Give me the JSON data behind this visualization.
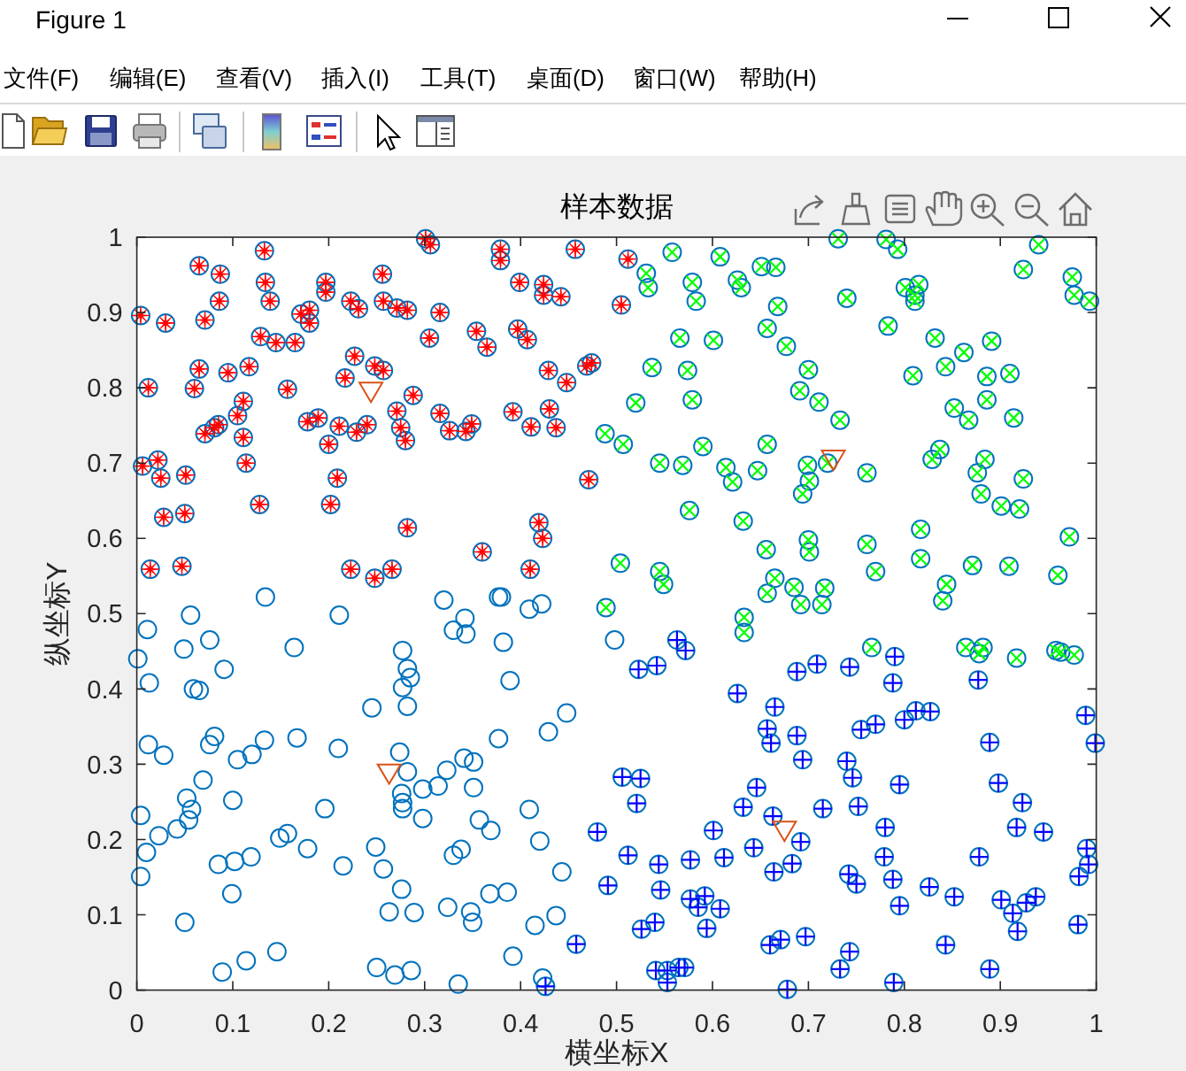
{
  "chart_data": {
    "type": "scatter",
    "title": "样本数据",
    "xlabel": "横坐标X",
    "ylabel": "纵坐标Y",
    "annotations": [
      "Figure 1",
      "文件(F)",
      "编辑(E)",
      "查看(V)",
      "插入(I)",
      "工具(T)",
      "桌面(D)",
      "窗口(W)",
      "帮助(H)"
    ],
    "xlim": [
      0,
      1
    ],
    "ylim": [
      0,
      1
    ],
    "xticks": [
      0,
      0.1,
      0.2,
      0.3,
      0.4,
      0.5,
      0.6,
      0.7,
      0.8,
      0.9,
      1
    ],
    "yticks": [
      0,
      0.1,
      0.2,
      0.3,
      0.4,
      0.5,
      0.6,
      0.7,
      0.8,
      0.9,
      1
    ],
    "series": [
      {
        "color": "#0072bd",
        "marker": "circle",
        "x": [
          0.004,
          0.03,
          0.012,
          0.065,
          0.087,
          0.086,
          0.071,
          0.133,
          0.134,
          0.139,
          0.129,
          0.145,
          0.165,
          0.065,
          0.06,
          0.095,
          0.117,
          0.157,
          0.171,
          0.18,
          0.18,
          0.197,
          0.197,
          0.223,
          0.231,
          0.256,
          0.257,
          0.271,
          0.282,
          0.316,
          0.301,
          0.306,
          0.305,
          0.227,
          0.217,
          0.248,
          0.257,
          0.288,
          0.071,
          0.081,
          0.085,
          0.105,
          0.111,
          0.111,
          0.114,
          0.006,
          0.022,
          0.025,
          0.051,
          0.028,
          0.05,
          0.014,
          0.047,
          0.128,
          0.178,
          0.189,
          0.2,
          0.211,
          0.209,
          0.202,
          0.229,
          0.24,
          0.271,
          0.275,
          0.28,
          0.316,
          0.326,
          0.343,
          0.349,
          0.282,
          0.223,
          0.248,
          0.266,
          0.36,
          0.354,
          0.365,
          0.379,
          0.379,
          0.399,
          0.397,
          0.407,
          0.424,
          0.424,
          0.442,
          0.457,
          0.429,
          0.448,
          0.469,
          0.474,
          0.392,
          0.411,
          0.43,
          0.437,
          0.471,
          0.419,
          0.423,
          0.41,
          0.512,
          0.505,
          0.488,
          0.507,
          0.52,
          0.504,
          0.489,
          0.558,
          0.608,
          0.531,
          0.533,
          0.579,
          0.583,
          0.626,
          0.63,
          0.651,
          0.666,
          0.668,
          0.657,
          0.677,
          0.731,
          0.781,
          0.793,
          0.74,
          0.783,
          0.801,
          0.815,
          0.811,
          0.811,
          0.94,
          0.924,
          0.975,
          0.977,
          0.993,
          0.566,
          0.601,
          0.537,
          0.574,
          0.579,
          0.7,
          0.691,
          0.711,
          0.733,
          0.832,
          0.862,
          0.891,
          0.809,
          0.843,
          0.886,
          0.91,
          0.852,
          0.867,
          0.886,
          0.914,
          0.545,
          0.569,
          0.59,
          0.657,
          0.614,
          0.621,
          0.647,
          0.699,
          0.701,
          0.694,
          0.72,
          0.761,
          0.829,
          0.837,
          0.876,
          0.884,
          0.88,
          0.901,
          0.92,
          0.924,
          0.576,
          0.632,
          0.817,
          0.972,
          0.545,
          0.549,
          0.656,
          0.7,
          0.701,
          0.761,
          0.77,
          0.817,
          0.871,
          0.909,
          0.96,
          0.844,
          0.84,
          0.665,
          0.657,
          0.685,
          0.717,
          0.692,
          0.714,
          0.633,
          0.633,
          0.766,
          0.864,
          0.878,
          0.882,
          0.917,
          0.958,
          0.963,
          0.977,
          0.563,
          0.572,
          0.523,
          0.542,
          0.626,
          0.665,
          0.657,
          0.661,
          0.688,
          0.709,
          0.743,
          0.79,
          0.788,
          0.877,
          0.688,
          0.694,
          0.755,
          0.77,
          0.8,
          0.812,
          0.827,
          0.889,
          0.989,
          0.999,
          0.506,
          0.525,
          0.521,
          0.646,
          0.632,
          0.663,
          0.715,
          0.752,
          0.74,
          0.746,
          0.795,
          0.898,
          0.923,
          0.917,
          0.945,
          0.78,
          0.601,
          0.643,
          0.692,
          0.48,
          0.512,
          0.544,
          0.577,
          0.612,
          0.664,
          0.683,
          0.779,
          0.878,
          0.99,
          0.992,
          0.982,
          0.491,
          0.546,
          0.577,
          0.585,
          0.592,
          0.608,
          0.742,
          0.75,
          0.788,
          0.795,
          0.826,
          0.852,
          0.901,
          0.913,
          0.918,
          0.927,
          0.937,
          0.981,
          0.526,
          0.54,
          0.594,
          0.66,
          0.671,
          0.697,
          0.743,
          0.733,
          0.843,
          0.889,
          0.541,
          0.553,
          0.553,
          0.565,
          0.571,
          0.678,
          0.789,
          0.458,
          0.426,
          0.001,
          0.011,
          0.013,
          0.056,
          0.049,
          0.076,
          0.091,
          0.059,
          0.065,
          0.134,
          0.164,
          0.211,
          0.012,
          0.028,
          0.076,
          0.081,
          0.069,
          0.105,
          0.12,
          0.133,
          0.167,
          0.21,
          0.245,
          0.004,
          0.01,
          0.004,
          0.023,
          0.042,
          0.052,
          0.057,
          0.054,
          0.1,
          0.085,
          0.102,
          0.119,
          0.099,
          0.05,
          0.089,
          0.114,
          0.146,
          0.149,
          0.157,
          0.178,
          0.196,
          0.215,
          0.249,
          0.257,
          0.276,
          0.263,
          0.289,
          0.25,
          0.269,
          0.286,
          0.274,
          0.282,
          0.276,
          0.277,
          0.277,
          0.298,
          0.298,
          0.314,
          0.323,
          0.341,
          0.351,
          0.351,
          0.357,
          0.369,
          0.33,
          0.338,
          0.324,
          0.348,
          0.35,
          0.368,
          0.386,
          0.392,
          0.335,
          0.409,
          0.42,
          0.443,
          0.437,
          0.415,
          0.423,
          0.429,
          0.448,
          0.377,
          0.389,
          0.382,
          0.277,
          0.282,
          0.285,
          0.277,
          0.282,
          0.33,
          0.342,
          0.343,
          0.32,
          0.377,
          0.38,
          0.409,
          0.422,
          0.498
        ],
        "values": [
          0.896,
          0.886,
          0.8,
          0.962,
          0.951,
          0.915,
          0.89,
          0.982,
          0.94,
          0.915,
          0.868,
          0.86,
          0.86,
          0.825,
          0.799,
          0.82,
          0.828,
          0.798,
          0.898,
          0.903,
          0.886,
          0.94,
          0.927,
          0.915,
          0.905,
          0.951,
          0.915,
          0.906,
          0.903,
          0.9,
          0.998,
          0.99,
          0.866,
          0.842,
          0.813,
          0.829,
          0.823,
          0.79,
          0.739,
          0.747,
          0.751,
          0.763,
          0.782,
          0.734,
          0.7,
          0.696,
          0.704,
          0.68,
          0.684,
          0.628,
          0.633,
          0.559,
          0.563,
          0.645,
          0.755,
          0.76,
          0.725,
          0.749,
          0.68,
          0.645,
          0.741,
          0.751,
          0.769,
          0.747,
          0.73,
          0.766,
          0.743,
          0.742,
          0.752,
          0.614,
          0.559,
          0.547,
          0.559,
          0.582,
          0.875,
          0.854,
          0.984,
          0.969,
          0.94,
          0.878,
          0.864,
          0.937,
          0.923,
          0.921,
          0.984,
          0.823,
          0.807,
          0.829,
          0.833,
          0.768,
          0.748,
          0.772,
          0.747,
          0.678,
          0.621,
          0.6,
          0.559,
          0.971,
          0.91,
          0.739,
          0.725,
          0.78,
          0.567,
          0.508,
          0.98,
          0.974,
          0.952,
          0.933,
          0.94,
          0.915,
          0.943,
          0.933,
          0.961,
          0.96,
          0.908,
          0.879,
          0.855,
          0.998,
          0.997,
          0.984,
          0.919,
          0.882,
          0.933,
          0.937,
          0.923,
          0.915,
          0.99,
          0.957,
          0.947,
          0.923,
          0.915,
          0.866,
          0.863,
          0.827,
          0.823,
          0.784,
          0.824,
          0.796,
          0.781,
          0.757,
          0.866,
          0.847,
          0.862,
          0.816,
          0.828,
          0.815,
          0.819,
          0.773,
          0.757,
          0.784,
          0.76,
          0.7,
          0.697,
          0.722,
          0.725,
          0.694,
          0.675,
          0.69,
          0.697,
          0.676,
          0.659,
          0.7,
          0.687,
          0.705,
          0.718,
          0.687,
          0.705,
          0.659,
          0.643,
          0.639,
          0.679,
          0.637,
          0.623,
          0.612,
          0.602,
          0.556,
          0.539,
          0.585,
          0.598,
          0.582,
          0.592,
          0.556,
          0.573,
          0.564,
          0.563,
          0.551,
          0.539,
          0.517,
          0.547,
          0.527,
          0.535,
          0.534,
          0.512,
          0.512,
          0.495,
          0.475,
          0.455,
          0.455,
          0.447,
          0.455,
          0.441,
          0.451,
          0.449,
          0.445,
          0.465,
          0.451,
          0.426,
          0.431,
          0.394,
          0.376,
          0.347,
          0.328,
          0.423,
          0.433,
          0.429,
          0.443,
          0.408,
          0.412,
          0.338,
          0.306,
          0.346,
          0.353,
          0.359,
          0.371,
          0.37,
          0.329,
          0.365,
          0.328,
          0.283,
          0.281,
          0.248,
          0.269,
          0.243,
          0.231,
          0.241,
          0.244,
          0.304,
          0.282,
          0.273,
          0.275,
          0.249,
          0.216,
          0.21,
          0.216,
          0.212,
          0.189,
          0.197,
          0.21,
          0.179,
          0.167,
          0.173,
          0.176,
          0.157,
          0.168,
          0.177,
          0.177,
          0.188,
          0.167,
          0.151,
          0.139,
          0.133,
          0.121,
          0.11,
          0.125,
          0.108,
          0.154,
          0.141,
          0.147,
          0.112,
          0.137,
          0.124,
          0.12,
          0.102,
          0.078,
          0.116,
          0.124,
          0.087,
          0.081,
          0.09,
          0.082,
          0.06,
          0.067,
          0.071,
          0.051,
          0.028,
          0.06,
          0.028,
          0.026,
          0.026,
          0.01,
          0.03,
          0.03,
          0.001,
          0.01,
          0.061,
          0.005,
          0.44,
          0.479,
          0.408,
          0.498,
          0.453,
          0.465,
          0.426,
          0.4,
          0.398,
          0.522,
          0.455,
          0.498,
          0.326,
          0.312,
          0.326,
          0.337,
          0.279,
          0.306,
          0.313,
          0.332,
          0.335,
          0.321,
          0.375,
          0.232,
          0.183,
          0.151,
          0.205,
          0.214,
          0.255,
          0.24,
          0.226,
          0.252,
          0.167,
          0.171,
          0.177,
          0.128,
          0.09,
          0.024,
          0.039,
          0.051,
          0.202,
          0.208,
          0.188,
          0.241,
          0.165,
          0.19,
          0.161,
          0.134,
          0.104,
          0.103,
          0.03,
          0.02,
          0.026,
          0.316,
          0.29,
          0.261,
          0.249,
          0.241,
          0.267,
          0.228,
          0.271,
          0.292,
          0.308,
          0.303,
          0.269,
          0.226,
          0.212,
          0.179,
          0.187,
          0.11,
          0.104,
          0.09,
          0.128,
          0.13,
          0.045,
          0.008,
          0.24,
          0.198,
          0.157,
          0.099,
          0.086,
          0.016,
          0.343,
          0.368,
          0.334,
          0.411,
          0.462,
          0.451,
          0.427,
          0.415,
          0.402,
          0.377,
          0.478,
          0.494,
          0.473,
          0.518,
          0.522,
          0.522,
          0.506,
          0.513,
          0.465
        ]
      },
      {
        "color": "#ff0000",
        "marker": "star",
        "x": [
          0.004,
          0.03,
          0.012,
          0.065,
          0.087,
          0.086,
          0.071,
          0.133,
          0.134,
          0.139,
          0.129,
          0.145,
          0.165,
          0.065,
          0.06,
          0.095,
          0.117,
          0.157,
          0.171,
          0.18,
          0.18,
          0.197,
          0.197,
          0.223,
          0.231,
          0.256,
          0.257,
          0.271,
          0.282,
          0.316,
          0.301,
          0.306,
          0.305,
          0.227,
          0.217,
          0.248,
          0.257,
          0.288,
          0.071,
          0.081,
          0.085,
          0.105,
          0.111,
          0.111,
          0.114,
          0.006,
          0.022,
          0.025,
          0.051,
          0.028,
          0.05,
          0.014,
          0.047,
          0.128,
          0.178,
          0.189,
          0.2,
          0.211,
          0.209,
          0.202,
          0.229,
          0.24,
          0.271,
          0.275,
          0.28,
          0.316,
          0.326,
          0.343,
          0.349,
          0.282,
          0.223,
          0.248,
          0.266,
          0.36,
          0.354,
          0.365,
          0.379,
          0.379,
          0.399,
          0.397,
          0.407,
          0.424,
          0.424,
          0.442,
          0.457,
          0.429,
          0.448,
          0.469,
          0.474,
          0.392,
          0.411,
          0.43,
          0.437,
          0.471,
          0.419,
          0.423,
          0.41,
          0.512,
          0.505
        ],
        "values": [
          0.896,
          0.886,
          0.8,
          0.962,
          0.951,
          0.915,
          0.89,
          0.982,
          0.94,
          0.915,
          0.868,
          0.86,
          0.86,
          0.825,
          0.799,
          0.82,
          0.828,
          0.798,
          0.898,
          0.903,
          0.886,
          0.94,
          0.927,
          0.915,
          0.905,
          0.951,
          0.915,
          0.906,
          0.903,
          0.9,
          0.998,
          0.99,
          0.866,
          0.842,
          0.813,
          0.829,
          0.823,
          0.79,
          0.739,
          0.747,
          0.751,
          0.763,
          0.782,
          0.734,
          0.7,
          0.696,
          0.704,
          0.68,
          0.684,
          0.628,
          0.633,
          0.559,
          0.563,
          0.645,
          0.755,
          0.76,
          0.725,
          0.749,
          0.68,
          0.645,
          0.741,
          0.751,
          0.769,
          0.747,
          0.73,
          0.766,
          0.743,
          0.742,
          0.752,
          0.614,
          0.559,
          0.547,
          0.559,
          0.582,
          0.875,
          0.854,
          0.984,
          0.969,
          0.94,
          0.878,
          0.864,
          0.937,
          0.923,
          0.921,
          0.984,
          0.823,
          0.807,
          0.829,
          0.833,
          0.768,
          0.748,
          0.772,
          0.747,
          0.678,
          0.621,
          0.6,
          0.559,
          0.971,
          0.91
        ]
      },
      {
        "color": "#00ff00",
        "marker": "x",
        "x": [
          0.488,
          0.507,
          0.52,
          0.504,
          0.489,
          0.558,
          0.608,
          0.531,
          0.533,
          0.579,
          0.583,
          0.626,
          0.63,
          0.651,
          0.666,
          0.668,
          0.657,
          0.677,
          0.731,
          0.781,
          0.793,
          0.74,
          0.783,
          0.801,
          0.815,
          0.811,
          0.811,
          0.94,
          0.924,
          0.975,
          0.977,
          0.993,
          0.566,
          0.601,
          0.537,
          0.574,
          0.579,
          0.7,
          0.691,
          0.711,
          0.733,
          0.832,
          0.862,
          0.891,
          0.809,
          0.843,
          0.886,
          0.91,
          0.852,
          0.867,
          0.886,
          0.914,
          0.545,
          0.569,
          0.59,
          0.657,
          0.614,
          0.621,
          0.647,
          0.699,
          0.701,
          0.694,
          0.72,
          0.761,
          0.829,
          0.837,
          0.876,
          0.884,
          0.88,
          0.901,
          0.92,
          0.924,
          0.576,
          0.632,
          0.817,
          0.972,
          0.545,
          0.549,
          0.656,
          0.7,
          0.701,
          0.761,
          0.77,
          0.817,
          0.871,
          0.909,
          0.96,
          0.844,
          0.84,
          0.665,
          0.657,
          0.685,
          0.717,
          0.692,
          0.714,
          0.633,
          0.633,
          0.766,
          0.864,
          0.878,
          0.882,
          0.917,
          0.958,
          0.963,
          0.977
        ],
        "values": [
          0.739,
          0.725,
          0.78,
          0.567,
          0.508,
          0.98,
          0.974,
          0.952,
          0.933,
          0.94,
          0.915,
          0.943,
          0.933,
          0.961,
          0.96,
          0.908,
          0.879,
          0.855,
          0.998,
          0.997,
          0.984,
          0.919,
          0.882,
          0.933,
          0.937,
          0.923,
          0.915,
          0.99,
          0.957,
          0.947,
          0.923,
          0.915,
          0.866,
          0.863,
          0.827,
          0.823,
          0.784,
          0.824,
          0.796,
          0.781,
          0.757,
          0.866,
          0.847,
          0.862,
          0.816,
          0.828,
          0.815,
          0.819,
          0.773,
          0.757,
          0.784,
          0.76,
          0.7,
          0.697,
          0.722,
          0.725,
          0.694,
          0.675,
          0.69,
          0.697,
          0.676,
          0.659,
          0.7,
          0.687,
          0.705,
          0.718,
          0.687,
          0.705,
          0.659,
          0.643,
          0.639,
          0.679,
          0.637,
          0.623,
          0.612,
          0.602,
          0.556,
          0.539,
          0.585,
          0.598,
          0.582,
          0.592,
          0.556,
          0.573,
          0.564,
          0.563,
          0.551,
          0.539,
          0.517,
          0.547,
          0.527,
          0.535,
          0.534,
          0.512,
          0.512,
          0.495,
          0.475,
          0.455,
          0.455,
          0.447,
          0.455,
          0.441,
          0.451,
          0.449,
          0.445
        ]
      },
      {
        "color": "#0000ff",
        "marker": "cross",
        "x": [
          0.563,
          0.572,
          0.523,
          0.542,
          0.626,
          0.665,
          0.657,
          0.661,
          0.688,
          0.709,
          0.743,
          0.79,
          0.788,
          0.877,
          0.688,
          0.694,
          0.755,
          0.77,
          0.8,
          0.812,
          0.827,
          0.889,
          0.989,
          0.999,
          0.506,
          0.525,
          0.521,
          0.646,
          0.632,
          0.663,
          0.715,
          0.752,
          0.74,
          0.746,
          0.795,
          0.898,
          0.923,
          0.917,
          0.945,
          0.78,
          0.601,
          0.643,
          0.692,
          0.48,
          0.512,
          0.544,
          0.577,
          0.612,
          0.664,
          0.683,
          0.779,
          0.878,
          0.99,
          0.992,
          0.982,
          0.491,
          0.546,
          0.577,
          0.585,
          0.592,
          0.608,
          0.742,
          0.75,
          0.788,
          0.795,
          0.826,
          0.852,
          0.901,
          0.913,
          0.918,
          0.927,
          0.937,
          0.981,
          0.526,
          0.54,
          0.594,
          0.66,
          0.671,
          0.697,
          0.743,
          0.733,
          0.843,
          0.889,
          0.541,
          0.553,
          0.553,
          0.565,
          0.571,
          0.678,
          0.789,
          0.458,
          0.426
        ],
        "values": [
          0.465,
          0.451,
          0.426,
          0.431,
          0.394,
          0.376,
          0.347,
          0.328,
          0.423,
          0.433,
          0.429,
          0.443,
          0.408,
          0.412,
          0.338,
          0.306,
          0.346,
          0.353,
          0.359,
          0.371,
          0.37,
          0.329,
          0.365,
          0.328,
          0.283,
          0.281,
          0.248,
          0.269,
          0.243,
          0.231,
          0.241,
          0.244,
          0.304,
          0.282,
          0.273,
          0.275,
          0.249,
          0.216,
          0.21,
          0.216,
          0.212,
          0.189,
          0.197,
          0.21,
          0.179,
          0.167,
          0.173,
          0.176,
          0.157,
          0.168,
          0.177,
          0.177,
          0.188,
          0.167,
          0.151,
          0.139,
          0.133,
          0.121,
          0.11,
          0.125,
          0.108,
          0.154,
          0.141,
          0.147,
          0.112,
          0.137,
          0.124,
          0.12,
          0.102,
          0.078,
          0.116,
          0.124,
          0.087,
          0.081,
          0.09,
          0.082,
          0.06,
          0.067,
          0.071,
          0.051,
          0.028,
          0.06,
          0.028,
          0.026,
          0.026,
          0.01,
          0.03,
          0.03,
          0.001,
          0.01,
          0.061,
          0.005
        ]
      },
      {
        "color": "#d95319",
        "marker": "triangle",
        "x": [
          0.244,
          0.726,
          0.675,
          0.263
        ],
        "values": [
          0.795,
          0.705,
          0.212,
          0.288
        ]
      }
    ]
  }
}
